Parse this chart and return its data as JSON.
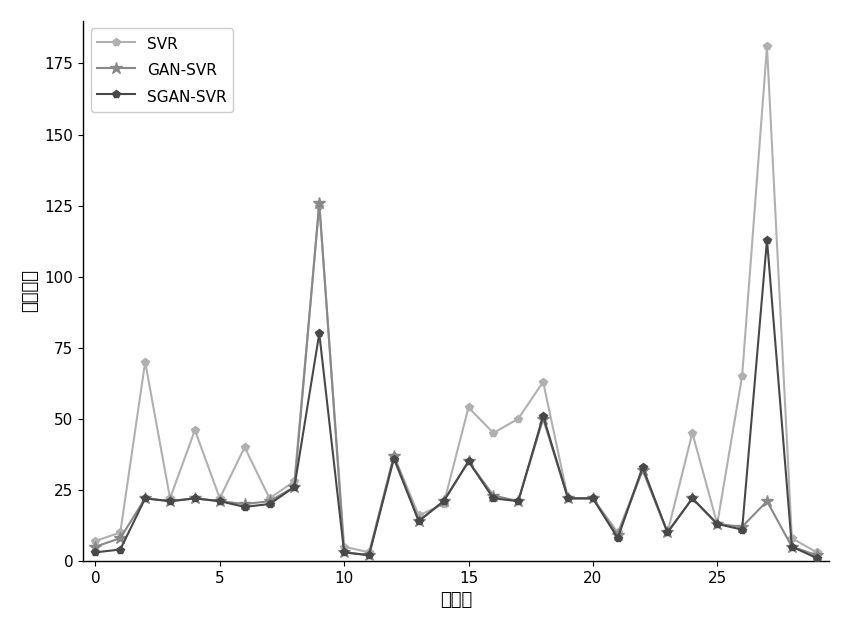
{
  "svr": [
    7,
    10,
    70,
    22,
    46,
    22,
    40,
    22,
    28,
    125,
    5,
    3,
    37,
    16,
    20,
    54,
    45,
    50,
    63,
    22,
    22,
    10,
    32,
    10,
    45,
    13,
    65,
    181,
    8,
    3
  ],
  "gan_svr": [
    5,
    8,
    22,
    21,
    22,
    21,
    20,
    21,
    26,
    126,
    3,
    2,
    37,
    14,
    21,
    35,
    23,
    21,
    50,
    22,
    22,
    9,
    32,
    10,
    22,
    13,
    12,
    21,
    5,
    2
  ],
  "sgan_svr": [
    3,
    4,
    22,
    21,
    22,
    21,
    19,
    20,
    26,
    80,
    3,
    2,
    36,
    14,
    21,
    35,
    22,
    21,
    51,
    22,
    22,
    8,
    33,
    10,
    22,
    13,
    11,
    113,
    5,
    1
  ],
  "svr_color": "#b0b0b0",
  "gan_svr_color": "#888888",
  "sgan_svr_color": "#484848",
  "xlabel": "样本数",
  "ylabel": "绝对误差",
  "legend_svr": "SVR",
  "legend_gan": "GAN-SVR",
  "legend_sgan": "SGAN-SVR",
  "xlim_min": -0.5,
  "xlim_max": 29.5,
  "ylim_min": 0,
  "ylim_max": 190,
  "yticks": [
    0,
    25,
    50,
    75,
    100,
    125,
    150,
    175
  ],
  "xticks": [
    0,
    5,
    10,
    15,
    20,
    25
  ]
}
